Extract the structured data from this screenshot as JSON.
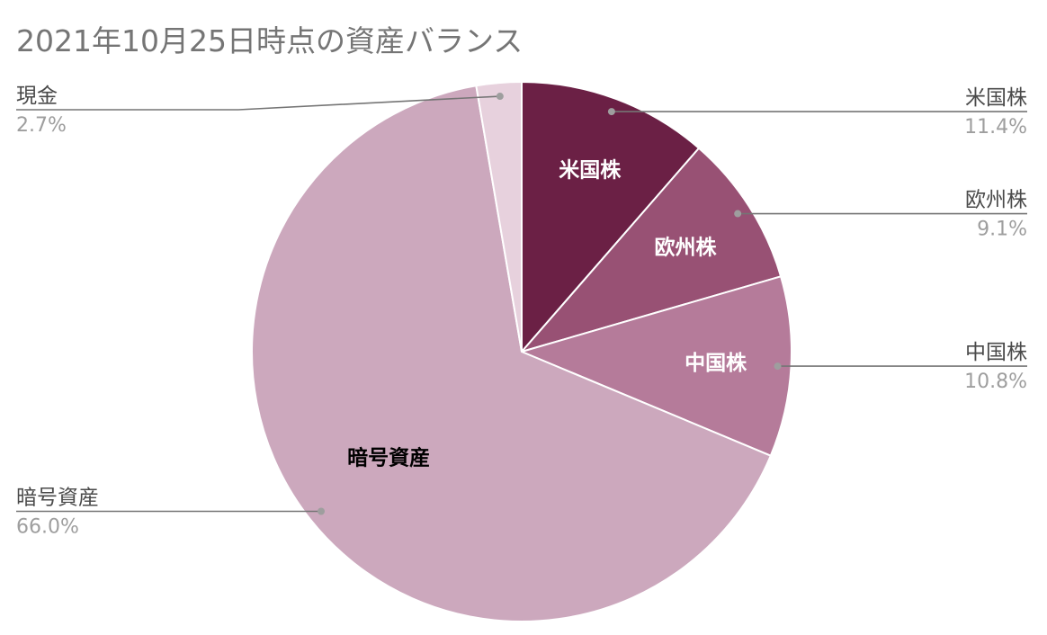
{
  "chart_data": {
    "type": "pie",
    "title": "2021年10月25日時点の資産バランス",
    "slices": [
      {
        "label": "米国株",
        "value": 11.4,
        "percent_label": "11.4%",
        "color": "#6b2045",
        "inner_label_color": "#ffffff"
      },
      {
        "label": "欧州株",
        "value": 9.1,
        "percent_label": "9.1%",
        "color": "#985174",
        "inner_label_color": "#ffffff"
      },
      {
        "label": "中国株",
        "value": 10.8,
        "percent_label": "10.8%",
        "color": "#b57b9a",
        "inner_label_color": "#ffffff"
      },
      {
        "label": "暗号資産",
        "value": 66.0,
        "percent_label": "66.0%",
        "color": "#cca8bd",
        "inner_label_color": "#000000"
      },
      {
        "label": "現金",
        "value": 2.7,
        "percent_label": "2.7%",
        "color": "#e7d1dd",
        "inner_label_color": "#000000"
      }
    ],
    "start_angle": "12 o'clock",
    "direction": "clockwise",
    "legend": "none",
    "outside_labels": [
      "right",
      "right",
      "right",
      "left",
      "left"
    ],
    "inner_labels_shown": [
      true,
      true,
      true,
      true,
      false
    ]
  }
}
